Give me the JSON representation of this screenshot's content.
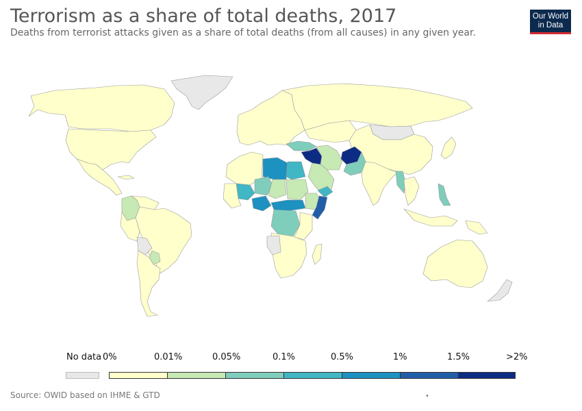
{
  "header": {
    "title": "Terrorism as a share of total deaths, 2017",
    "subtitle": "Deaths from terrorist attacks given as a share of total deaths (from all causes) in any given year."
  },
  "logo": {
    "line1": "Our World",
    "line2": "in Data"
  },
  "legend": {
    "no_data_label": "No data",
    "bins": [
      {
        "label": "0%",
        "color": "#ffffcc"
      },
      {
        "label": "0.01%",
        "color": "#c7e9b4"
      },
      {
        "label": "0.05%",
        "color": "#7fcdbb"
      },
      {
        "label": "0.1%",
        "color": "#41b6c4"
      },
      {
        "label": "0.5%",
        "color": "#1d91c0"
      },
      {
        "label": "1%",
        "color": "#225ea8"
      },
      {
        "label": "1.5%",
        "color": "#0c2c84"
      }
    ],
    "max_label": ">2%",
    "no_data_color": "#e8e8e8"
  },
  "footer": {
    "source": "Source: OWID based on IHME & GTD",
    "marker": "•"
  },
  "colors": {
    "no_data": "#e8e8e8",
    "bin0": "#ffffcc",
    "bin1": "#c7e9b4",
    "bin2": "#7fcdbb",
    "bin3": "#41b6c4",
    "bin4": "#1d91c0",
    "bin5": "#225ea8",
    "bin6": "#0c2c84"
  }
}
